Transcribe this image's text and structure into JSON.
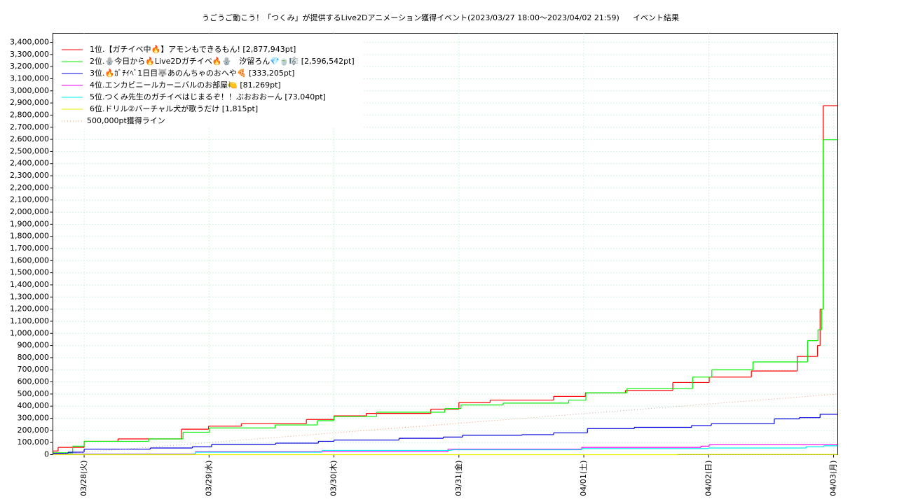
{
  "chart_data": {
    "type": "step",
    "title": "うごうご動こう！「つくみ」が提供するLive2Dアニメーション獲得イベント(2023/03/27 18:00〜2023/04/02 21:59)",
    "subtitle": "イベント結果",
    "xlim": [
      0,
      150.8
    ],
    "ylim": [
      0,
      3475000
    ],
    "xticks": [
      {
        "value": 6,
        "label": "03/28(火)"
      },
      {
        "value": 30,
        "label": "03/29(水)"
      },
      {
        "value": 54,
        "label": "03/30(木)"
      },
      {
        "value": 78,
        "label": "03/31(金)"
      },
      {
        "value": 102,
        "label": "04/01(土)"
      },
      {
        "value": 126,
        "label": "04/02(日)"
      },
      {
        "value": 150,
        "label": "04/03(月)"
      }
    ],
    "yticks": [
      0,
      {
        "value": 100000,
        "label": "100,000"
      },
      {
        "value": 200000,
        "label": "200,000"
      },
      {
        "value": 300000,
        "label": "300,000"
      },
      {
        "value": 400000,
        "label": "400,000"
      },
      {
        "value": 500000,
        "label": "500,000"
      },
      {
        "value": 600000,
        "label": "600,000"
      },
      {
        "value": 700000,
        "label": "700,000"
      },
      {
        "value": 800000,
        "label": "800,000"
      },
      {
        "value": 900000,
        "label": "900,000"
      },
      {
        "value": 1000000,
        "label": "1,000,000"
      },
      {
        "value": 1100000,
        "label": "1,100,000"
      },
      {
        "value": 1200000,
        "label": "1,200,000"
      },
      {
        "value": 1300000,
        "label": "1,300,000"
      },
      {
        "value": 1400000,
        "label": "1,400,000"
      },
      {
        "value": 1500000,
        "label": "1,500,000"
      },
      {
        "value": 1600000,
        "label": "1,600,000"
      },
      {
        "value": 1700000,
        "label": "1,700,000"
      },
      {
        "value": 1800000,
        "label": "1,800,000"
      },
      {
        "value": 1900000,
        "label": "1,900,000"
      },
      {
        "value": 2000000,
        "label": "2,000,000"
      },
      {
        "value": 2100000,
        "label": "2,100,000"
      },
      {
        "value": 2200000,
        "label": "2,200,000"
      },
      {
        "value": 2300000,
        "label": "2,300,000"
      },
      {
        "value": 2400000,
        "label": "2,400,000"
      },
      {
        "value": 2500000,
        "label": "2,500,000"
      },
      {
        "value": 2600000,
        "label": "2,600,000"
      },
      {
        "value": 2700000,
        "label": "2,700,000"
      },
      {
        "value": 2800000,
        "label": "2,800,000"
      },
      {
        "value": 2900000,
        "label": "2,900,000"
      },
      {
        "value": 3000000,
        "label": "3,000,000"
      },
      {
        "value": 3100000,
        "label": "3,100,000"
      },
      {
        "value": 3200000,
        "label": "3,200,000"
      },
      {
        "value": 3300000,
        "label": "3,300,000"
      },
      {
        "value": 3400000,
        "label": "3,400,000"
      }
    ],
    "grid": true,
    "legend": "upper left",
    "series": [
      {
        "name": "1位.【ガチイベ中🔥】アモンもできるもん! [2,877,943pt]",
        "color": "#ff0000",
        "x": [
          0,
          1,
          6,
          12.5,
          24.7,
          29.9,
          36.2,
          48.7,
          54,
          60.2,
          72.6,
          78,
          84,
          96.2,
          102.3,
          110,
          119.1,
          126.1,
          134.2,
          143,
          146.9,
          147.4,
          148
        ],
        "values": [
          30000,
          60000,
          110000,
          130000,
          210000,
          235000,
          255000,
          290000,
          320000,
          340000,
          375000,
          430000,
          450000,
          480000,
          510000,
          530000,
          595000,
          640000,
          690000,
          810000,
          900000,
          1200000,
          2877943
        ]
      },
      {
        "name": "2位.🪬今日から🔥Live2Dガチイベ🔥🪬　汐留ろん💎🍵🎼 [2,596,542pt]",
        "color": "#00ee00",
        "x": [
          0,
          3.8,
          6,
          18.4,
          25,
          30.1,
          42.7,
          50.8,
          54,
          62.2,
          75.3,
          78.4,
          86.5,
          99.1,
          102.4,
          110.3,
          122.9,
          126.6,
          134.5,
          145,
          147,
          147.7,
          148
        ],
        "values": [
          15000,
          70000,
          110000,
          130000,
          185000,
          220000,
          245000,
          280000,
          315000,
          350000,
          380000,
          410000,
          425000,
          450000,
          510000,
          545000,
          640000,
          700000,
          765000,
          940000,
          1030000,
          1200000,
          2596542
        ]
      },
      {
        "name": "3位.🔥ｶﾞﾁｲﾍﾞ1日目🐺あのんちゃのおへや🍕 [333,205pt]",
        "color": "#0000dd",
        "x": [
          0,
          2.9,
          6,
          18.7,
          26.8,
          30.5,
          42.8,
          51,
          54,
          66.5,
          75,
          78.7,
          90.1,
          96.2,
          102.7,
          111.7,
          122.7,
          126.5,
          138.6,
          143.4,
          147.4
        ],
        "values": [
          10000,
          20000,
          45000,
          55000,
          65000,
          85000,
          95000,
          110000,
          120000,
          135000,
          145000,
          160000,
          165000,
          180000,
          215000,
          225000,
          240000,
          255000,
          295000,
          305000,
          333205
        ]
      },
      {
        "name": "4位.エンカビニールカーニバルのお部屋🍋 [81,269pt]",
        "color": "#ee00ee",
        "x": [
          0,
          27.4,
          75.9,
          101.6,
          124.5,
          126.1
        ],
        "values": [
          5000,
          25000,
          45000,
          60000,
          70000,
          81269
        ]
      },
      {
        "name": "5位.つくみ先生のガチイベはじまるぞ！！ぶおおおーん [73,040pt]",
        "color": "#00eeee",
        "x": [
          0,
          27.4,
          51.7,
          76.6,
          101.6,
          125.9,
          144.7,
          148.1
        ],
        "values": [
          2000,
          20000,
          35000,
          40000,
          50000,
          55000,
          65000,
          73040
        ]
      },
      {
        "name": "6位.ドリル②バーチャル犬が歌うだけ [1,815pt]",
        "color": "#eeee00",
        "x": [
          0,
          120
        ],
        "values": [
          0,
          1815
        ]
      },
      {
        "name": "500,000pt獲得ライン",
        "color": "#e0a080",
        "style": "dotted",
        "x": [
          0,
          150.8
        ],
        "values": [
          0,
          500000
        ]
      }
    ]
  }
}
